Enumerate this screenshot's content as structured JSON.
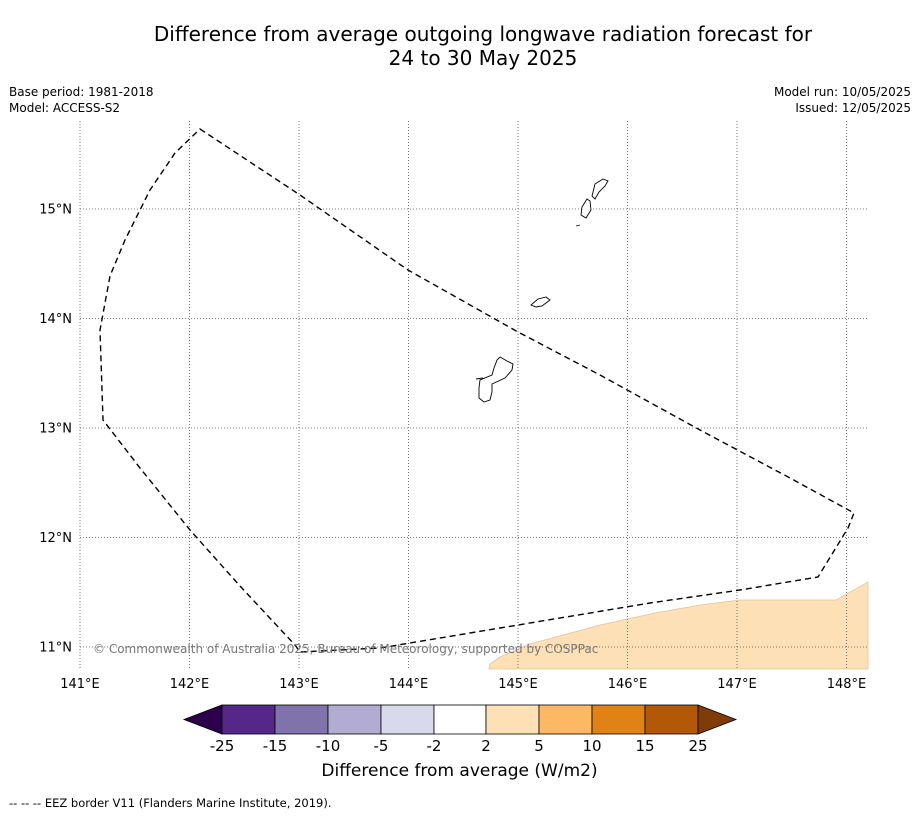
{
  "title_line1": "Difference from average outgoing longwave radiation forecast for",
  "title_line2": "24 to 30 May 2025",
  "meta": {
    "base_period": "Base period: 1981-2018",
    "model": "Model: ACCESS-S2",
    "model_run": "Model run: 10/05/2025",
    "issued": "Issued: 12/05/2025"
  },
  "map": {
    "lon_range": [
      141,
      148.2
    ],
    "lat_range": [
      10.8,
      15.8
    ],
    "lon_ticks": [
      "141°E",
      "142°E",
      "143°E",
      "144°E",
      "145°E",
      "146°E",
      "147°E",
      "148°E"
    ],
    "lat_ticks": [
      "15°N",
      "14°N",
      "13°N",
      "12°N",
      "11°N"
    ],
    "gridlines": "dotted",
    "copyright": "© Commonwealth of Australia 2025, Bureau of Meteorology, supported by COSPPac",
    "anomaly_fill_color": "#fde0b5",
    "eez_line_style": "dashed"
  },
  "colorbar": {
    "tick_labels": [
      "-25",
      "-15",
      "-10",
      "-5",
      "-2",
      "2",
      "5",
      "10",
      "15",
      "25"
    ],
    "colors": [
      "#2d004b",
      "#542788",
      "#8073ac",
      "#b2abd2",
      "#d8daeb",
      "#ffffff",
      "#fee0b6",
      "#fdb863",
      "#e08214",
      "#b35806",
      "#7f3b08"
    ],
    "label": "Difference from average (W/m2)"
  },
  "footer": "--  --  -- EEZ border V11 (Flanders Marine Institute, 2019)."
}
